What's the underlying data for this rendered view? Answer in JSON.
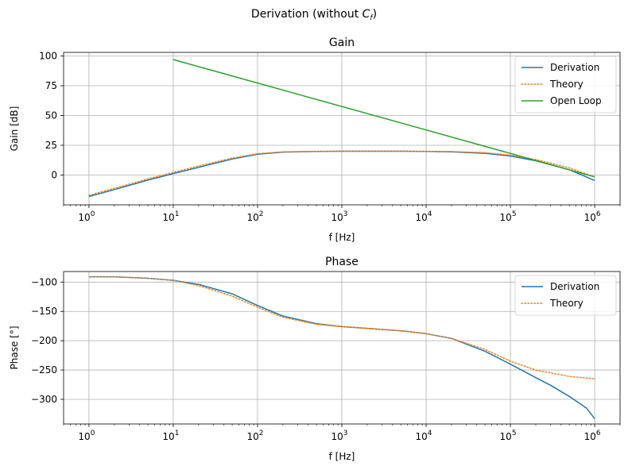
{
  "figure": {
    "suptitle_prefix": "Derivation (without ",
    "suptitle_var": "C",
    "suptitle_sub": "f",
    "suptitle_suffix": ")"
  },
  "chart_data": [
    {
      "type": "line",
      "title": "Gain",
      "xlabel": "f [Hz]",
      "ylabel": "Gain [dB]",
      "xscale": "log",
      "xlim": [
        0.5,
        2000000
      ],
      "ylim": [
        -25,
        103
      ],
      "xticks": [
        {
          "value": 1,
          "exp": "0"
        },
        {
          "value": 10,
          "exp": "1"
        },
        {
          "value": 100,
          "exp": "2"
        },
        {
          "value": 1000,
          "exp": "3"
        },
        {
          "value": 10000,
          "exp": "4"
        },
        {
          "value": 100000,
          "exp": "5"
        },
        {
          "value": 1000000,
          "exp": "6"
        }
      ],
      "yticks": [
        {
          "value": 0,
          "label": "0"
        },
        {
          "value": 25,
          "label": "25"
        },
        {
          "value": 50,
          "label": "50"
        },
        {
          "value": 75,
          "label": "75"
        },
        {
          "value": 100,
          "label": "100"
        }
      ],
      "grid": true,
      "legend": "top-right",
      "series": [
        {
          "name": "Derivation",
          "color": "#1f77b4",
          "style": "solid",
          "x": [
            1,
            2,
            5,
            10,
            20,
            50,
            100,
            200,
            500,
            1000,
            2000,
            5000,
            10000,
            20000,
            50000,
            100000,
            200000,
            500000,
            1000000
          ],
          "y": [
            -18,
            -12.2,
            -4.3,
            1.3,
            6.5,
            13.5,
            17.5,
            19.3,
            19.9,
            20,
            20,
            20,
            19.8,
            19.5,
            18.3,
            16,
            12,
            4.5,
            -4.5
          ]
        },
        {
          "name": "Theory",
          "color": "#ff7f0e",
          "style": "dotted",
          "x": [
            1,
            2,
            5,
            10,
            20,
            50,
            100,
            200,
            500,
            1000,
            2000,
            5000,
            10000,
            20000,
            50000,
            100000,
            200000,
            500000,
            1000000
          ],
          "y": [
            -17,
            -11.1,
            -3.3,
            2.3,
            7.6,
            14.3,
            18,
            19.5,
            19.9,
            20,
            20,
            20,
            19.9,
            19.7,
            18.8,
            16.8,
            13,
            6,
            -1.5
          ]
        },
        {
          "name": "Open Loop",
          "color": "#2ca02c",
          "style": "solid",
          "x": [
            10,
            1000000
          ],
          "y": [
            97,
            -1.5
          ]
        }
      ]
    },
    {
      "type": "line",
      "title": "Phase",
      "xlabel": "f [Hz]",
      "ylabel": "Phase [°]",
      "xscale": "log",
      "xlim": [
        0.5,
        2000000
      ],
      "ylim": [
        -342,
        -82
      ],
      "xticks": [
        {
          "value": 1,
          "exp": "0"
        },
        {
          "value": 10,
          "exp": "1"
        },
        {
          "value": 100,
          "exp": "2"
        },
        {
          "value": 1000,
          "exp": "3"
        },
        {
          "value": 10000,
          "exp": "4"
        },
        {
          "value": 100000,
          "exp": "5"
        },
        {
          "value": 1000000,
          "exp": "6"
        }
      ],
      "yticks": [
        {
          "value": -100,
          "label": "−100"
        },
        {
          "value": -150,
          "label": "−150"
        },
        {
          "value": -200,
          "label": "−200"
        },
        {
          "value": -250,
          "label": "−250"
        },
        {
          "value": -300,
          "label": "−300"
        }
      ],
      "grid": true,
      "legend": "top-right",
      "series": [
        {
          "name": "Derivation",
          "color": "#1f77b4",
          "style": "solid",
          "x": [
            1,
            2,
            5,
            10,
            20,
            50,
            100,
            200,
            500,
            1000,
            2000,
            5000,
            10000,
            20000,
            50000,
            100000,
            200000,
            300000,
            500000,
            800000,
            1000000
          ],
          "y": [
            -91,
            -91,
            -93.5,
            -97,
            -104,
            -120,
            -140,
            -158,
            -171,
            -176,
            -179,
            -183,
            -188,
            -196,
            -218,
            -240,
            -263,
            -276,
            -295,
            -315,
            -333
          ]
        },
        {
          "name": "Theory",
          "color": "#ff7f0e",
          "style": "dotted",
          "x": [
            1,
            2,
            5,
            10,
            20,
            50,
            100,
            200,
            500,
            1000,
            2000,
            5000,
            10000,
            20000,
            50000,
            100000,
            200000,
            500000,
            1000000
          ],
          "y": [
            -91,
            -91,
            -93.5,
            -97,
            -106,
            -124,
            -143,
            -160,
            -172,
            -176,
            -179,
            -183,
            -188,
            -196,
            -215,
            -235,
            -250,
            -261,
            -265
          ]
        }
      ]
    }
  ]
}
